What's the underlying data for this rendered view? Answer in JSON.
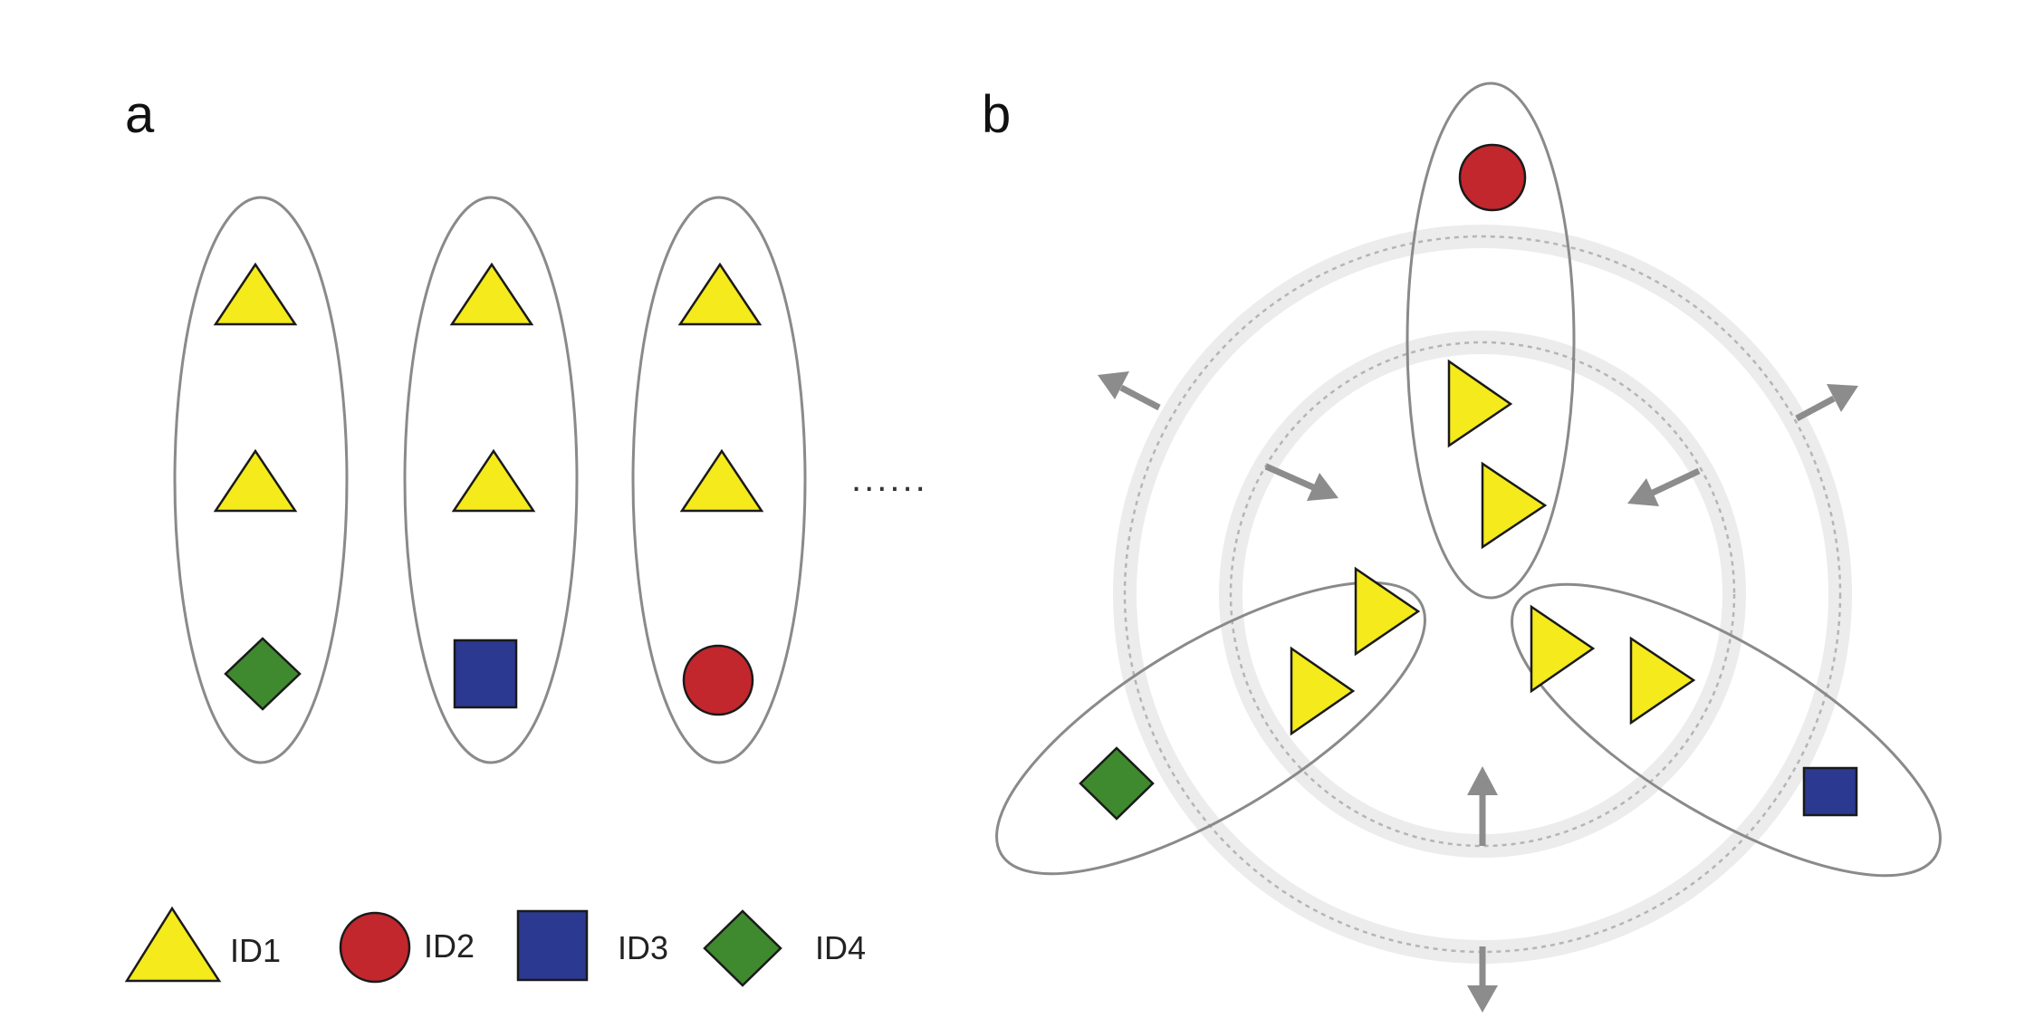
{
  "panels": {
    "a": "a",
    "b": "b"
  },
  "continuation": "......",
  "legend": [
    {
      "shape": "triangle",
      "label": "ID1",
      "color": "#f4ea1c"
    },
    {
      "shape": "circle",
      "label": "ID2",
      "color": "#c1272d"
    },
    {
      "shape": "square",
      "label": "ID3",
      "color": "#2b3990"
    },
    {
      "shape": "diamond",
      "label": "ID4",
      "color": "#3f8a2e"
    }
  ],
  "panel_a_groups": [
    {
      "members": [
        "ID1",
        "ID1",
        "ID4"
      ]
    },
    {
      "members": [
        "ID1",
        "ID1",
        "ID3"
      ]
    },
    {
      "members": [
        "ID1",
        "ID1",
        "ID2"
      ]
    }
  ],
  "panel_b_groups": [
    {
      "members": [
        "ID2",
        "ID1",
        "ID1"
      ]
    },
    {
      "members": [
        "ID4",
        "ID1",
        "ID1"
      ]
    },
    {
      "members": [
        "ID1",
        "ID1",
        "ID3"
      ]
    }
  ]
}
